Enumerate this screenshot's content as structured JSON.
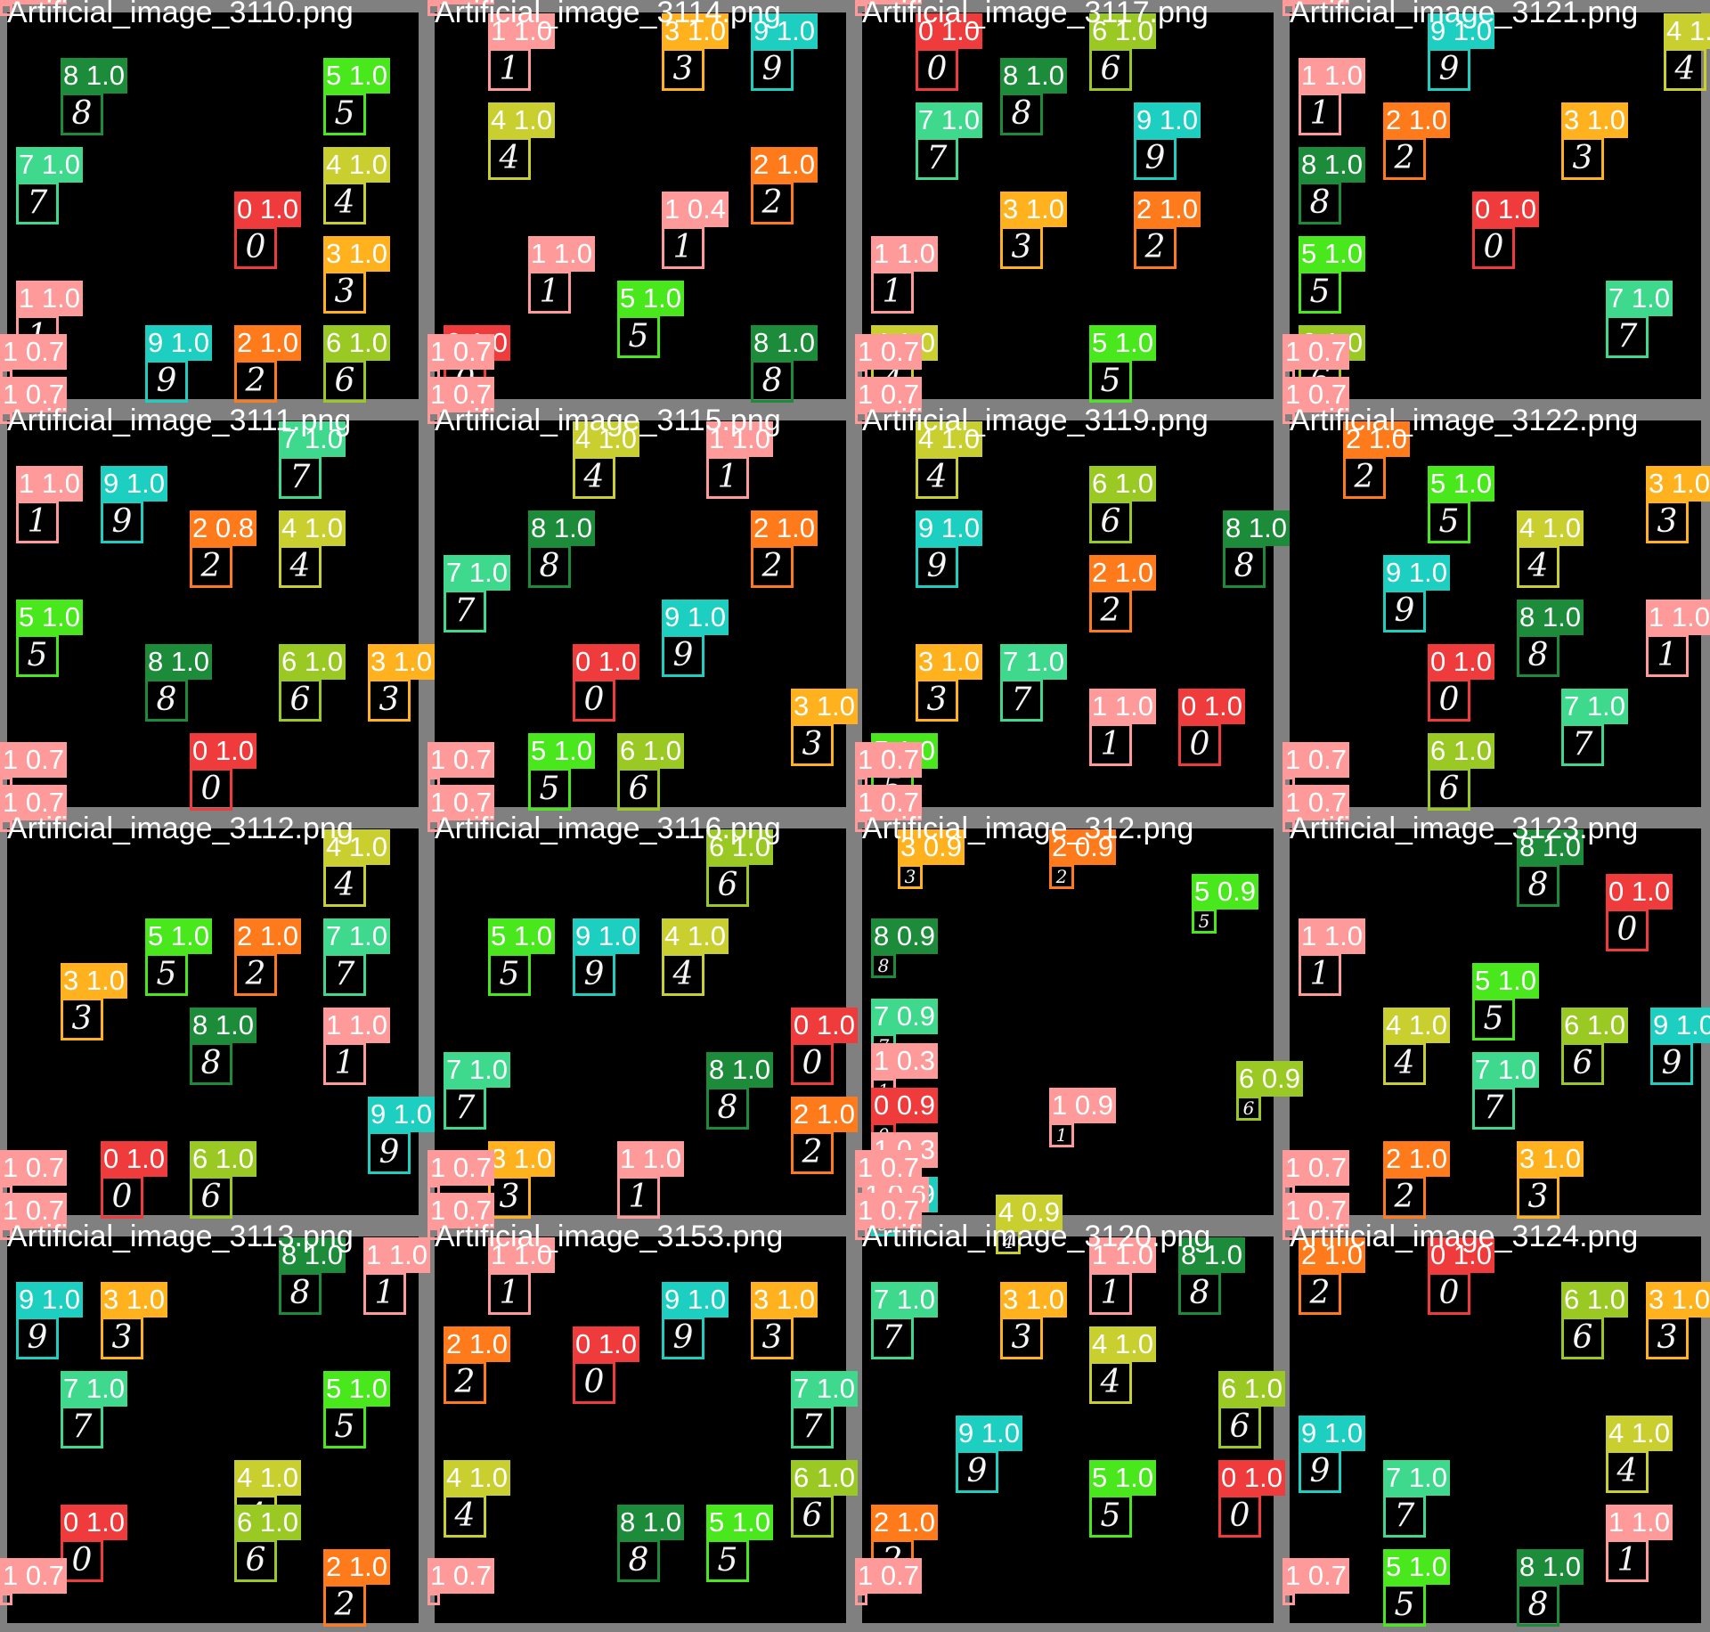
{
  "tiles": [
    {
      "title": "Artificial_image_3110.png",
      "boxes": [
        {
          "label": "1 0.7",
          "cls": 1,
          "corner": true
        },
        {
          "label": "8 1.0",
          "cls": 8,
          "digit": "8"
        },
        {
          "label": "5 1.0",
          "cls": 5,
          "digit": "5"
        },
        {
          "label": "7 1.0",
          "cls": 7,
          "digit": "7"
        },
        {
          "label": "4 1.0",
          "cls": 4,
          "digit": "4"
        },
        {
          "label": "0 1.0",
          "cls": 0,
          "digit": "0"
        },
        {
          "label": "3 1.0",
          "cls": 3,
          "digit": "3"
        },
        {
          "label": "1 1.0",
          "cls": 1,
          "digit": "1"
        },
        {
          "label": "9 1.0",
          "cls": 9,
          "digit": "9"
        },
        {
          "label": "2 1.0",
          "cls": 2,
          "digit": "2"
        },
        {
          "label": "6 1.0",
          "cls": 6,
          "digit": "6"
        },
        {
          "label": "1 0.7",
          "cls": 1,
          "corner": true
        }
      ]
    },
    {
      "title": "Artificial_image_3114.png",
      "boxes": [
        {
          "label": "1 0.7",
          "cls": 1,
          "corner": true
        },
        {
          "label": "1 1.0",
          "cls": 1,
          "digit": "1"
        },
        {
          "label": "3 1.0",
          "cls": 3,
          "digit": "3"
        },
        {
          "label": "9 1.0",
          "cls": 9,
          "digit": "9"
        },
        {
          "label": "4 1.0",
          "cls": 4,
          "digit": "4"
        },
        {
          "label": "2 1.0",
          "cls": 2,
          "digit": "2"
        },
        {
          "label": "1 0.4",
          "cls": 1,
          "digit": "1"
        },
        {
          "label": "1 1.0",
          "cls": 1,
          "digit": "1"
        },
        {
          "label": "5 1.0",
          "cls": 5,
          "digit": "5"
        },
        {
          "label": "0 1.0",
          "cls": 0,
          "digit": "0"
        },
        {
          "label": "8 1.0",
          "cls": 8,
          "digit": "8"
        },
        {
          "label": "1 0.7",
          "cls": 1,
          "corner": true
        }
      ]
    },
    {
      "title": "Artificial_image_3117.png",
      "boxes": [
        {
          "label": "1 0.7",
          "cls": 1,
          "corner": true
        },
        {
          "label": "0 1.0",
          "cls": 0,
          "digit": "0"
        },
        {
          "label": "8 1.0",
          "cls": 8,
          "digit": "8"
        },
        {
          "label": "6 1.0",
          "cls": 6,
          "digit": "6"
        },
        {
          "label": "7 1.0",
          "cls": 7,
          "digit": "7"
        },
        {
          "label": "9 1.0",
          "cls": 9,
          "digit": "9"
        },
        {
          "label": "3 1.0",
          "cls": 3,
          "digit": "3"
        },
        {
          "label": "2 1.0",
          "cls": 2,
          "digit": "2"
        },
        {
          "label": "1 1.0",
          "cls": 1,
          "digit": "1"
        },
        {
          "label": "4 1.0",
          "cls": 4,
          "digit": "4"
        },
        {
          "label": "5 1.0",
          "cls": 5,
          "digit": "5"
        },
        {
          "label": "1 0.7",
          "cls": 1,
          "corner": true
        }
      ]
    },
    {
      "title": "Artificial_image_3121.png",
      "boxes": [
        {
          "label": "1 0.7",
          "cls": 1,
          "corner": true
        },
        {
          "label": "9 1.0",
          "cls": 9,
          "digit": "9"
        },
        {
          "label": "4 1.0",
          "cls": 4,
          "digit": "4"
        },
        {
          "label": "1 1.0",
          "cls": 1,
          "digit": "1"
        },
        {
          "label": "2 1.0",
          "cls": 2,
          "digit": "2"
        },
        {
          "label": "3 1.0",
          "cls": 3,
          "digit": "3"
        },
        {
          "label": "8 1.0",
          "cls": 8,
          "digit": "8"
        },
        {
          "label": "0 1.0",
          "cls": 0,
          "digit": "0"
        },
        {
          "label": "5 1.0",
          "cls": 5,
          "digit": "5"
        },
        {
          "label": "7 1.0",
          "cls": 7,
          "digit": "7"
        },
        {
          "label": "6 1.0",
          "cls": 6,
          "digit": "6"
        },
        {
          "label": "1 0.7",
          "cls": 1,
          "corner": true
        }
      ]
    },
    {
      "title": "Artificial_image_3111.png",
      "boxes": [
        {
          "label": "1 0.7",
          "cls": 1,
          "corner": true
        },
        {
          "label": "7 1.0",
          "cls": 7,
          "digit": "7"
        },
        {
          "label": "1 1.0",
          "cls": 1,
          "digit": "1"
        },
        {
          "label": "9 1.0",
          "cls": 9,
          "digit": "9"
        },
        {
          "label": "2 0.8",
          "cls": 2,
          "digit": "2"
        },
        {
          "label": "4 1.0",
          "cls": 4,
          "digit": "4"
        },
        {
          "label": "5 1.0",
          "cls": 5,
          "digit": "5"
        },
        {
          "label": "8 1.0",
          "cls": 8,
          "digit": "8"
        },
        {
          "label": "6 1.0",
          "cls": 6,
          "digit": "6"
        },
        {
          "label": "3 1.0",
          "cls": 3,
          "digit": "3"
        },
        {
          "label": "0 1.0",
          "cls": 0,
          "digit": "0"
        },
        {
          "label": "1 0.7",
          "cls": 1,
          "corner": true
        }
      ]
    },
    {
      "title": "Artificial_image_3115.png",
      "boxes": [
        {
          "label": "1 0.7",
          "cls": 1,
          "corner": true
        },
        {
          "label": "4 1.0",
          "cls": 4,
          "digit": "4"
        },
        {
          "label": "1 1.0",
          "cls": 1,
          "digit": "1"
        },
        {
          "label": "8 1.0",
          "cls": 8,
          "digit": "8"
        },
        {
          "label": "2 1.0",
          "cls": 2,
          "digit": "2"
        },
        {
          "label": "7 1.0",
          "cls": 7,
          "digit": "7"
        },
        {
          "label": "9 1.0",
          "cls": 9,
          "digit": "9"
        },
        {
          "label": "0 1.0",
          "cls": 0,
          "digit": "0"
        },
        {
          "label": "3 1.0",
          "cls": 3,
          "digit": "3"
        },
        {
          "label": "5 1.0",
          "cls": 5,
          "digit": "5"
        },
        {
          "label": "6 1.0",
          "cls": 6,
          "digit": "6"
        },
        {
          "label": "1 0.7",
          "cls": 1,
          "corner": true
        }
      ]
    },
    {
      "title": "Artificial_image_3119.png",
      "boxes": [
        {
          "label": "1 0.7",
          "cls": 1,
          "corner": true
        },
        {
          "label": "4 1.0",
          "cls": 4,
          "digit": "4"
        },
        {
          "label": "6 1.0",
          "cls": 6,
          "digit": "6"
        },
        {
          "label": "9 1.0",
          "cls": 9,
          "digit": "9"
        },
        {
          "label": "8 1.0",
          "cls": 8,
          "digit": "8"
        },
        {
          "label": "2 1.0",
          "cls": 2,
          "digit": "2"
        },
        {
          "label": "3 1.0",
          "cls": 3,
          "digit": "3"
        },
        {
          "label": "7 1.0",
          "cls": 7,
          "digit": "7"
        },
        {
          "label": "1 1.0",
          "cls": 1,
          "digit": "1"
        },
        {
          "label": "0 1.0",
          "cls": 0,
          "digit": "0"
        },
        {
          "label": "5 1.0",
          "cls": 5,
          "digit": "5"
        },
        {
          "label": "1 0.7",
          "cls": 1,
          "corner": true
        }
      ]
    },
    {
      "title": "Artificial_image_3122.png",
      "boxes": [
        {
          "label": "1 0.7",
          "cls": 1,
          "corner": true
        },
        {
          "label": "2 1.0",
          "cls": 2,
          "digit": "2"
        },
        {
          "label": "5 1.0",
          "cls": 5,
          "digit": "5"
        },
        {
          "label": "3 1.0",
          "cls": 3,
          "digit": "3"
        },
        {
          "label": "4 1.0",
          "cls": 4,
          "digit": "4"
        },
        {
          "label": "9 1.0",
          "cls": 9,
          "digit": "9"
        },
        {
          "label": "8 1.0",
          "cls": 8,
          "digit": "8"
        },
        {
          "label": "1 1.0",
          "cls": 1,
          "digit": "1"
        },
        {
          "label": "0 1.0",
          "cls": 0,
          "digit": "0"
        },
        {
          "label": "7 1.0",
          "cls": 7,
          "digit": "7"
        },
        {
          "label": "6 1.0",
          "cls": 6,
          "digit": "6"
        },
        {
          "label": "1 0.7",
          "cls": 1,
          "corner": true
        }
      ]
    },
    {
      "title": "Artificial_image_3112.png",
      "boxes": [
        {
          "label": "1 0.7",
          "cls": 1,
          "corner": true
        },
        {
          "label": "4 1.0",
          "cls": 4,
          "digit": "4"
        },
        {
          "label": "5 1.0",
          "cls": 5,
          "digit": "5"
        },
        {
          "label": "2 1.0",
          "cls": 2,
          "digit": "2"
        },
        {
          "label": "7 1.0",
          "cls": 7,
          "digit": "7"
        },
        {
          "label": "3 1.0",
          "cls": 3,
          "digit": "3"
        },
        {
          "label": "8 1.0",
          "cls": 8,
          "digit": "8"
        },
        {
          "label": "1 1.0",
          "cls": 1,
          "digit": "1"
        },
        {
          "label": "9 1.0",
          "cls": 9,
          "digit": "9"
        },
        {
          "label": "0 1.0",
          "cls": 0,
          "digit": "0"
        },
        {
          "label": "6 1.0",
          "cls": 6,
          "digit": "6"
        },
        {
          "label": "1 0.7",
          "cls": 1,
          "corner": true
        }
      ]
    },
    {
      "title": "Artificial_image_3116.png",
      "boxes": [
        {
          "label": "1 0.7",
          "cls": 1,
          "corner": true
        },
        {
          "label": "6 1.0",
          "cls": 6,
          "digit": "6"
        },
        {
          "label": "5 1.0",
          "cls": 5,
          "digit": "5"
        },
        {
          "label": "9 1.0",
          "cls": 9,
          "digit": "9"
        },
        {
          "label": "4 1.0",
          "cls": 4,
          "digit": "4"
        },
        {
          "label": "0 1.0",
          "cls": 0,
          "digit": "0"
        },
        {
          "label": "7 1.0",
          "cls": 7,
          "digit": "7"
        },
        {
          "label": "8 1.0",
          "cls": 8,
          "digit": "8"
        },
        {
          "label": "2 1.0",
          "cls": 2,
          "digit": "2"
        },
        {
          "label": "3 1.0",
          "cls": 3,
          "digit": "3"
        },
        {
          "label": "1 1.0",
          "cls": 1,
          "digit": "1"
        },
        {
          "label": "1 0.7",
          "cls": 1,
          "corner": true
        }
      ]
    },
    {
      "title": "Artificial_image_312.png",
      "boxes": [
        {
          "label": "1 0.7",
          "cls": 1,
          "corner": true
        },
        {
          "label": "2 0.9",
          "cls": 2,
          "digit": "2"
        },
        {
          "label": "3 0.9",
          "cls": 3,
          "digit": "3"
        },
        {
          "label": "5 0.9",
          "cls": 5,
          "digit": "5"
        },
        {
          "label": "8 0.9",
          "cls": 8,
          "digit": "8"
        },
        {
          "label": "7 0.9",
          "cls": 7,
          "digit": "7"
        },
        {
          "label": "1 0.3",
          "cls": 1,
          "digit": "1"
        },
        {
          "label": "0 0.9",
          "cls": 0,
          "digit": "0"
        },
        {
          "label": "6 0.9",
          "cls": 6,
          "digit": "6"
        },
        {
          "label": "1 0.9",
          "cls": 1,
          "digit": "1"
        },
        {
          "label": "1 0.3",
          "cls": 1,
          "digit": "1"
        },
        {
          "label": "9 0.9",
          "cls": 9,
          "digit": "9"
        },
        {
          "label": "1 0.6",
          "cls": 1,
          "digit": "1"
        },
        {
          "label": "4 0.9",
          "cls": 4,
          "digit": "4"
        },
        {
          "label": "1 0.7",
          "cls": 1,
          "corner": true
        }
      ]
    },
    {
      "title": "Artificial_image_3123.png",
      "boxes": [
        {
          "label": "1 0.7",
          "cls": 1,
          "corner": true
        },
        {
          "label": "8 1.0",
          "cls": 8,
          "digit": "8"
        },
        {
          "label": "0 1.0",
          "cls": 0,
          "digit": "0"
        },
        {
          "label": "1 1.0",
          "cls": 1,
          "digit": "1"
        },
        {
          "label": "5 1.0",
          "cls": 5,
          "digit": "5"
        },
        {
          "label": "4 1.0",
          "cls": 4,
          "digit": "4"
        },
        {
          "label": "6 1.0",
          "cls": 6,
          "digit": "6"
        },
        {
          "label": "9 1.0",
          "cls": 9,
          "digit": "9"
        },
        {
          "label": "7 1.0",
          "cls": 7,
          "digit": "7"
        },
        {
          "label": "2 1.0",
          "cls": 2,
          "digit": "2"
        },
        {
          "label": "3 1.0",
          "cls": 3,
          "digit": "3"
        },
        {
          "label": "1 0.7",
          "cls": 1,
          "corner": true
        }
      ]
    },
    {
      "title": "Artificial_image_3113.png",
      "boxes": [
        {
          "label": "1 0.7",
          "cls": 1,
          "corner": true
        },
        {
          "label": "8 1.0",
          "cls": 8,
          "digit": "8"
        },
        {
          "label": "1 1.0",
          "cls": 1,
          "digit": "1"
        },
        {
          "label": "9 1.0",
          "cls": 9,
          "digit": "9"
        },
        {
          "label": "3 1.0",
          "cls": 3,
          "digit": "3"
        },
        {
          "label": "7 1.0",
          "cls": 7,
          "digit": "7"
        },
        {
          "label": "5 1.0",
          "cls": 5,
          "digit": "5"
        },
        {
          "label": "4 1.0",
          "cls": 4,
          "digit": "4"
        },
        {
          "label": "0 1.0",
          "cls": 0,
          "digit": "0"
        },
        {
          "label": "6 1.0",
          "cls": 6,
          "digit": "6"
        },
        {
          "label": "2 1.0",
          "cls": 2,
          "digit": "2"
        },
        {
          "label": "1 0.7",
          "cls": 1,
          "corner": true
        }
      ]
    },
    {
      "title": "Artificial_image_3153.png",
      "boxes": [
        {
          "label": "1 0.7",
          "cls": 1,
          "corner": true
        },
        {
          "label": "1 1.0",
          "cls": 1,
          "digit": "1"
        },
        {
          "label": "9 1.0",
          "cls": 9,
          "digit": "9"
        },
        {
          "label": "3 1.0",
          "cls": 3,
          "digit": "3"
        },
        {
          "label": "2 1.0",
          "cls": 2,
          "digit": "2"
        },
        {
          "label": "0 1.0",
          "cls": 0,
          "digit": "0"
        },
        {
          "label": "7 1.0",
          "cls": 7,
          "digit": "7"
        },
        {
          "label": "4 1.0",
          "cls": 4,
          "digit": "4"
        },
        {
          "label": "6 1.0",
          "cls": 6,
          "digit": "6"
        },
        {
          "label": "8 1.0",
          "cls": 8,
          "digit": "8"
        },
        {
          "label": "5 1.0",
          "cls": 5,
          "digit": "5"
        },
        {
          "label": "1 0.7",
          "cls": 1,
          "corner": true
        }
      ]
    },
    {
      "title": "Artificial_image_3120.png",
      "boxes": [
        {
          "label": "1 0.7",
          "cls": 1,
          "corner": true
        },
        {
          "label": "1 1.0",
          "cls": 1,
          "digit": "1"
        },
        {
          "label": "8 1.0",
          "cls": 8,
          "digit": "8"
        },
        {
          "label": "7 1.0",
          "cls": 7,
          "digit": "7"
        },
        {
          "label": "3 1.0",
          "cls": 3,
          "digit": "3"
        },
        {
          "label": "4 1.0",
          "cls": 4,
          "digit": "4"
        },
        {
          "label": "6 1.0",
          "cls": 6,
          "digit": "6"
        },
        {
          "label": "9 1.0",
          "cls": 9,
          "digit": "9"
        },
        {
          "label": "5 1.0",
          "cls": 5,
          "digit": "5"
        },
        {
          "label": "0 1.0",
          "cls": 0,
          "digit": "0"
        },
        {
          "label": "2 1.0",
          "cls": 2,
          "digit": "2"
        },
        {
          "label": "1 0.7",
          "cls": 1,
          "corner": true
        }
      ]
    },
    {
      "title": "Artificial_image_3124.png",
      "boxes": [
        {
          "label": "1 0.7",
          "cls": 1,
          "corner": true
        },
        {
          "label": "2 1.0",
          "cls": 2,
          "digit": "2"
        },
        {
          "label": "0 1.0",
          "cls": 0,
          "digit": "0"
        },
        {
          "label": "6 1.0",
          "cls": 6,
          "digit": "6"
        },
        {
          "label": "3 1.0",
          "cls": 3,
          "digit": "3"
        },
        {
          "label": "9 1.0",
          "cls": 9,
          "digit": "9"
        },
        {
          "label": "4 1.0",
          "cls": 4,
          "digit": "4"
        },
        {
          "label": "7 1.0",
          "cls": 7,
          "digit": "7"
        },
        {
          "label": "1 1.0",
          "cls": 1,
          "digit": "1"
        },
        {
          "label": "5 1.0",
          "cls": 5,
          "digit": "5"
        },
        {
          "label": "8 1.0",
          "cls": 8,
          "digit": "8"
        },
        {
          "label": "1 0.7",
          "cls": 1,
          "corner": true
        }
      ]
    }
  ],
  "class_colors": {
    "0": "#ef3b3b",
    "1": "#ff9a9a",
    "2": "#ff7a1a",
    "3": "#ffb21d",
    "4": "#c9cf2e",
    "5": "#48e81c",
    "6": "#9ac923",
    "7": "#3fd98e",
    "8": "#1d8c3a",
    "9": "#1ccfc0"
  }
}
